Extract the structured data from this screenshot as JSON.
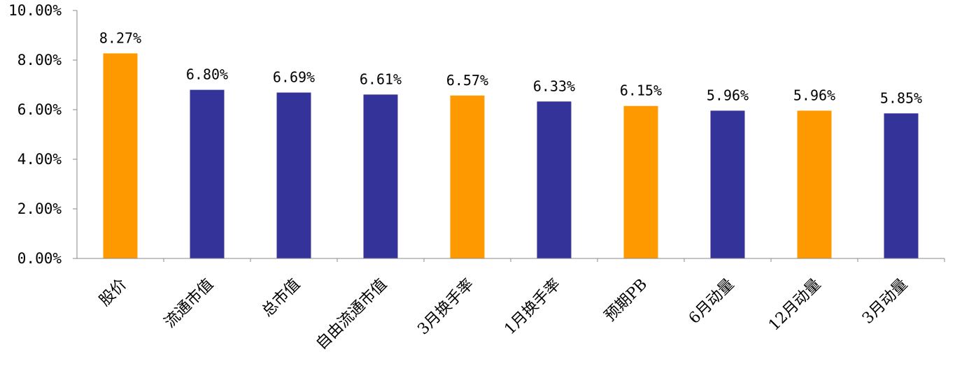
{
  "chart_data": {
    "type": "bar",
    "categories": [
      "股价",
      "流通市值",
      "总市值",
      "自由流通市值",
      "3月换手率",
      "1月换手率",
      "预期PB",
      "6月动量",
      "12月动量",
      "3月动量"
    ],
    "values": [
      8.27,
      6.8,
      6.69,
      6.61,
      6.57,
      6.33,
      6.15,
      5.96,
      5.96,
      5.85
    ],
    "value_labels": [
      "8.27%",
      "6.80%",
      "6.69%",
      "6.61%",
      "6.57%",
      "6.33%",
      "6.15%",
      "5.96%",
      "5.96%",
      "5.85%"
    ],
    "bar_colors": [
      "#FF9900",
      "#333399",
      "#333399",
      "#333399",
      "#FF9900",
      "#333399",
      "#FF9900",
      "#333399",
      "#FF9900",
      "#333399"
    ],
    "ylim": [
      0,
      10
    ],
    "yticks": [
      0,
      2,
      4,
      6,
      8,
      10
    ],
    "ytick_labels": [
      "0.00%",
      "2.00%",
      "4.00%",
      "6.00%",
      "8.00%",
      "10.00%"
    ],
    "grid": false,
    "legend": "none",
    "title": "",
    "xlabel": "",
    "ylabel": ""
  }
}
